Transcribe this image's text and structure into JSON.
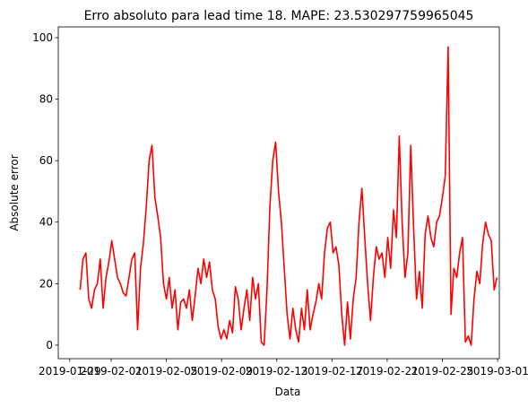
{
  "chart_data": {
    "type": "line",
    "title": "Erro absoluto para lead time 18. MAPE: 23.530297759965045",
    "xlabel": "Data",
    "ylabel": "Absolute error",
    "color": "#ff0000",
    "xlim": [
      "2019-01-28T04:00",
      "2019-03-01T03:00"
    ],
    "xticks": [
      "2019-01-29",
      "2019-02-01",
      "2019-02-05",
      "2019-02-09",
      "2019-02-13",
      "2019-02-17",
      "2019-02-21",
      "2019-02-25",
      "2019-03-01"
    ],
    "ylim": [
      -4.4,
      103.5
    ],
    "yticks": [
      0,
      20,
      40,
      60,
      80,
      100
    ],
    "x": [
      "2019-01-29T18:00",
      "2019-01-29T23:00",
      "2019-01-30T04:00",
      "2019-01-30T09:00",
      "2019-01-30T14:00",
      "2019-01-30T19:00",
      "2019-01-31T00:00",
      "2019-01-31T05:00",
      "2019-01-31T10:00",
      "2019-01-31T15:00",
      "2019-01-31T20:00",
      "2019-02-01T01:00",
      "2019-02-01T06:00",
      "2019-02-01T11:00",
      "2019-02-01T16:00",
      "2019-02-01T21:00",
      "2019-02-02T02:00",
      "2019-02-02T07:00",
      "2019-02-02T12:00",
      "2019-02-02T17:00",
      "2019-02-02T22:00",
      "2019-02-03T03:00",
      "2019-02-03T08:00",
      "2019-02-03T13:00",
      "2019-02-03T18:00",
      "2019-02-03T23:00",
      "2019-02-04T04:00",
      "2019-02-04T09:00",
      "2019-02-04T14:00",
      "2019-02-04T19:00",
      "2019-02-05T00:00",
      "2019-02-05T05:00",
      "2019-02-05T10:00",
      "2019-02-05T15:00",
      "2019-02-05T20:00",
      "2019-02-06T01:00",
      "2019-02-06T06:00",
      "2019-02-06T11:00",
      "2019-02-06T16:00",
      "2019-02-06T21:00",
      "2019-02-07T02:00",
      "2019-02-07T07:00",
      "2019-02-07T12:00",
      "2019-02-07T17:00",
      "2019-02-07T22:00",
      "2019-02-08T03:00",
      "2019-02-08T08:00",
      "2019-02-08T13:00",
      "2019-02-08T18:00",
      "2019-02-08T23:00",
      "2019-02-09T04:00",
      "2019-02-09T09:00",
      "2019-02-09T14:00",
      "2019-02-09T19:00",
      "2019-02-10T00:00",
      "2019-02-10T05:00",
      "2019-02-10T10:00",
      "2019-02-10T15:00",
      "2019-02-10T20:00",
      "2019-02-11T01:00",
      "2019-02-11T06:00",
      "2019-02-11T11:00",
      "2019-02-11T16:00",
      "2019-02-11T21:00",
      "2019-02-12T02:00",
      "2019-02-12T07:00",
      "2019-02-12T12:00",
      "2019-02-12T17:00",
      "2019-02-12T22:00",
      "2019-02-13T03:00",
      "2019-02-13T08:00",
      "2019-02-13T13:00",
      "2019-02-13T18:00",
      "2019-02-13T23:00",
      "2019-02-14T04:00",
      "2019-02-14T09:00",
      "2019-02-14T14:00",
      "2019-02-14T19:00",
      "2019-02-15T00:00",
      "2019-02-15T05:00",
      "2019-02-15T10:00",
      "2019-02-15T15:00",
      "2019-02-15T20:00",
      "2019-02-16T01:00",
      "2019-02-16T06:00",
      "2019-02-16T11:00",
      "2019-02-16T16:00",
      "2019-02-16T21:00",
      "2019-02-17T02:00",
      "2019-02-17T07:00",
      "2019-02-17T12:00",
      "2019-02-17T17:00",
      "2019-02-17T22:00",
      "2019-02-18T03:00",
      "2019-02-18T08:00",
      "2019-02-18T13:00",
      "2019-02-18T18:00",
      "2019-02-18T23:00",
      "2019-02-19T04:00",
      "2019-02-19T09:00",
      "2019-02-19T14:00",
      "2019-02-19T19:00",
      "2019-02-20T00:00",
      "2019-02-20T05:00",
      "2019-02-20T10:00",
      "2019-02-20T15:00",
      "2019-02-20T20:00",
      "2019-02-21T01:00",
      "2019-02-21T06:00",
      "2019-02-21T11:00",
      "2019-02-21T16:00",
      "2019-02-21T21:00",
      "2019-02-22T02:00",
      "2019-02-22T07:00",
      "2019-02-22T12:00",
      "2019-02-22T17:00",
      "2019-02-22T22:00",
      "2019-02-23T03:00",
      "2019-02-23T08:00",
      "2019-02-23T13:00",
      "2019-02-23T18:00",
      "2019-02-23T23:00",
      "2019-02-24T04:00",
      "2019-02-24T09:00",
      "2019-02-24T14:00",
      "2019-02-24T19:00",
      "2019-02-25T00:00",
      "2019-02-25T05:00",
      "2019-02-25T10:00",
      "2019-02-25T15:00",
      "2019-02-25T20:00",
      "2019-02-26T01:00",
      "2019-02-26T06:00",
      "2019-02-26T11:00",
      "2019-02-26T16:00",
      "2019-02-26T21:00",
      "2019-02-27T02:00",
      "2019-02-27T07:00",
      "2019-02-27T12:00",
      "2019-02-27T17:00",
      "2019-02-27T22:00",
      "2019-02-28T03:00",
      "2019-02-28T08:00",
      "2019-02-28T13:00",
      "2019-02-28T18:00",
      "2019-02-28T23:00"
    ],
    "values": [
      18,
      28,
      30,
      15,
      12,
      18,
      20,
      28,
      12,
      22,
      27,
      34,
      28,
      22,
      20,
      17,
      16,
      22,
      28,
      30,
      5,
      25,
      33,
      45,
      60,
      65,
      48,
      42,
      35,
      20,
      15,
      22,
      12,
      18,
      5,
      14,
      15,
      12,
      18,
      8,
      16,
      25,
      20,
      28,
      22,
      27,
      18,
      15,
      6,
      2,
      5,
      2,
      8,
      4,
      19,
      15,
      5,
      12,
      18,
      8,
      22,
      15,
      20,
      1,
      0,
      18,
      45,
      60,
      66,
      50,
      40,
      25,
      10,
      2,
      12,
      5,
      1,
      12,
      5,
      18,
      5,
      10,
      14,
      20,
      15,
      30,
      38,
      40,
      30,
      32,
      26,
      10,
      0,
      14,
      2,
      15,
      22,
      40,
      51,
      35,
      20,
      8,
      22,
      32,
      28,
      30,
      22,
      35,
      25,
      44,
      35,
      68,
      40,
      22,
      30,
      65,
      38,
      15,
      24,
      12,
      36,
      42,
      35,
      32,
      40,
      42,
      48,
      55,
      97,
      10,
      25,
      22,
      30,
      35,
      1,
      3,
      0,
      15,
      24,
      20,
      33,
      40,
      36,
      34,
      18,
      22
    ]
  }
}
